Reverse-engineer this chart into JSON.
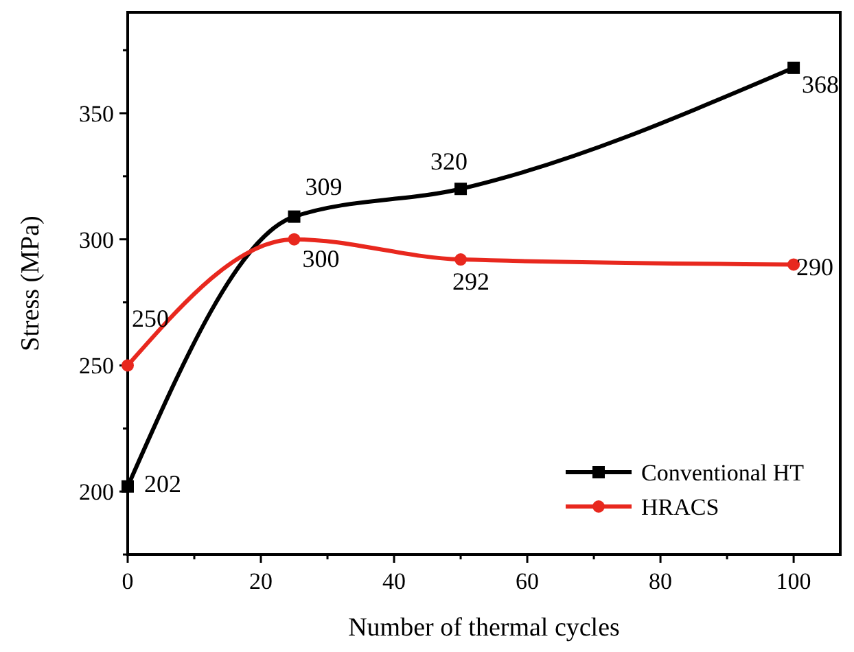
{
  "chart_data": {
    "type": "line",
    "xlabel": "Number of thermal cycles",
    "ylabel": "Stress (MPa)",
    "x": [
      0,
      25,
      50,
      100
    ],
    "series": [
      {
        "name": "Conventional HT",
        "color": "#000000",
        "values": [
          202,
          309,
          320,
          368
        ],
        "marker": "square"
      },
      {
        "name": "HRACS",
        "color": "#e8281e",
        "values": [
          250,
          300,
          292,
          290
        ],
        "marker": "circle"
      }
    ],
    "xlim": [
      0,
      107
    ],
    "xticks": [
      0,
      20,
      40,
      60,
      80,
      100
    ],
    "ylim": [
      175,
      390
    ],
    "yticks": [
      200,
      250,
      300,
      350
    ],
    "data_labels": true,
    "grid": false,
    "legend": "bottom right",
    "line_style": "solid"
  }
}
